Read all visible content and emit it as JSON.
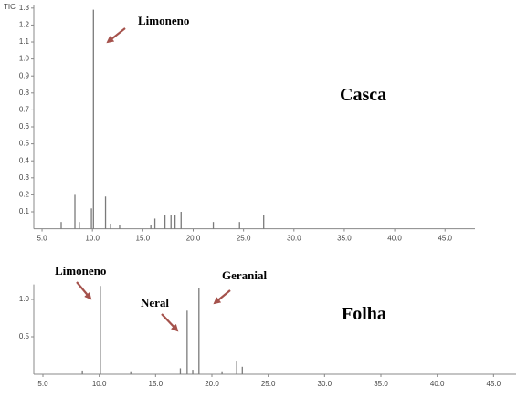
{
  "chart_data": [
    {
      "type": "stem",
      "y_label": "TIC",
      "label": "Casca",
      "annotations": [
        "Limoneno"
      ],
      "color": "#7a7a7a",
      "x": [
        6.9,
        8.26,
        8.7,
        9.9,
        10.1,
        11.3,
        11.8,
        12.7,
        15.8,
        16.2,
        17.2,
        17.8,
        18.2,
        18.8,
        22.0,
        24.6,
        27.0
      ],
      "values": [
        0.04,
        0.2,
        0.04,
        0.12,
        1.29,
        0.19,
        0.03,
        0.02,
        0.02,
        0.06,
        0.08,
        0.08,
        0.08,
        0.1,
        0.04,
        0.04,
        0.08
      ],
      "xlim": [
        4.18,
        47.97
      ],
      "ylim": [
        0,
        1.32
      ],
      "xticks": [
        {
          "value": 5,
          "label": "5.0"
        },
        {
          "value": 10,
          "label": "10.0"
        },
        {
          "value": 15,
          "label": "15.0"
        },
        {
          "value": 20,
          "label": "20.0"
        },
        {
          "value": 25,
          "label": "25.0"
        },
        {
          "value": 30,
          "label": "30.0"
        },
        {
          "value": 35,
          "label": "35.0"
        },
        {
          "value": 40,
          "label": "40.0"
        },
        {
          "value": 45,
          "label": "45.0"
        }
      ],
      "yticks": [
        0.1,
        0.2,
        0.3,
        0.4,
        0.5,
        0.6,
        0.7,
        0.8,
        0.9,
        {
          "value": 1,
          "label": "1.0"
        },
        1.1,
        1.2,
        1.3
      ]
    },
    {
      "type": "stem",
      "label": "Folha",
      "annotations": [
        "Limoneno",
        "Neral",
        "Geranial"
      ],
      "color": "#7a7a7a",
      "x": [
        8.5,
        10.1,
        12.8,
        17.2,
        17.8,
        18.3,
        18.85,
        20.9,
        22.2,
        22.7
      ],
      "values": [
        0.05,
        1.18,
        0.04,
        0.08,
        0.85,
        0.06,
        1.15,
        0.04,
        0.17,
        0.1
      ],
      "xlim": [
        4.19,
        47.0
      ],
      "ylim": [
        0,
        1.2
      ],
      "xticks": [
        {
          "value": 5,
          "label": "5.0"
        },
        {
          "value": 10,
          "label": "10.0"
        },
        {
          "value": 15,
          "label": "15.0"
        },
        {
          "value": 20,
          "label": "20.0"
        },
        {
          "value": 25,
          "label": "25.0"
        },
        {
          "value": 30,
          "label": "30.0"
        },
        {
          "value": 35,
          "label": "35.0"
        },
        {
          "value": 40,
          "label": "40.0"
        },
        {
          "value": 45,
          "label": "45.0"
        }
      ],
      "yticks": [
        0.5,
        {
          "value": 1,
          "label": "1.0"
        }
      ]
    }
  ]
}
